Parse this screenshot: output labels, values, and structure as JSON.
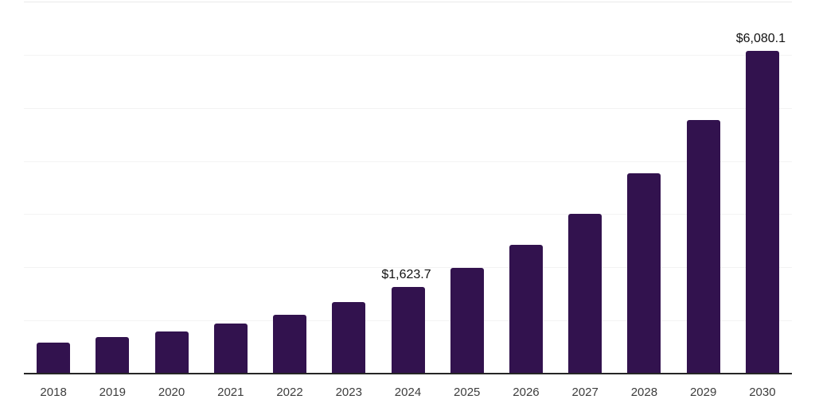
{
  "chart_data": {
    "type": "bar",
    "title": "",
    "xlabel": "",
    "ylabel": "",
    "categories": [
      "2018",
      "2019",
      "2020",
      "2021",
      "2022",
      "2023",
      "2024",
      "2025",
      "2026",
      "2027",
      "2028",
      "2029",
      "2030"
    ],
    "values": [
      585,
      685,
      800,
      940,
      1110,
      1345,
      1623.7,
      1985,
      2420,
      3005,
      3770,
      4770,
      6080.1
    ],
    "data_labels": {
      "2024": "$1,623.7",
      "2030": "$6,080.1"
    },
    "ylim": [
      0,
      7000
    ],
    "gridline_values_estimated": [
      1000,
      2000,
      3000,
      4000,
      5000,
      6000,
      7000
    ],
    "grid": "horizontal",
    "legend": "none"
  },
  "colors": {
    "bar": "#32124e",
    "background": "#ffffff",
    "axis_line": "#262626",
    "axis_label": "#3d3d3d",
    "data_label": "#111111",
    "gridline": "#f3f3f3",
    "gridline_top": "#e9e9e9"
  }
}
